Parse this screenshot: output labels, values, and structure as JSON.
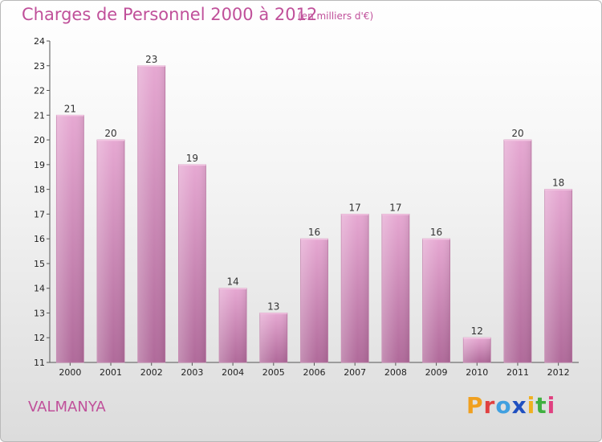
{
  "header": {
    "title": "Charges de Personnel 2000 à 2012",
    "subtitle": "(en milliers d'€)"
  },
  "footer": {
    "commune": "VALMANYA",
    "logo_letters": [
      "P",
      "r",
      "o",
      "x",
      "i",
      "t",
      "i"
    ],
    "logo_colors": [
      "#f0a020",
      "#e04040",
      "#40a0e0",
      "#2050c0",
      "#f0b020",
      "#40b040",
      "#e04080"
    ]
  },
  "chart_data": {
    "type": "bar",
    "categories": [
      "2000",
      "2001",
      "2002",
      "2003",
      "2004",
      "2005",
      "2006",
      "2007",
      "2008",
      "2009",
      "2010",
      "2011",
      "2012"
    ],
    "values": [
      21,
      20,
      23,
      19,
      14,
      13,
      16,
      17,
      17,
      16,
      12,
      20,
      18
    ],
    "title": "Charges de Personnel 2000 à 2012",
    "subtitle": "(en milliers d'€)",
    "ylim": [
      11,
      24
    ],
    "yticks": [
      11,
      12,
      13,
      14,
      15,
      16,
      17,
      18,
      19,
      20,
      21,
      22,
      23,
      24
    ],
    "grid": false,
    "bar_color": "#d88fbf"
  }
}
